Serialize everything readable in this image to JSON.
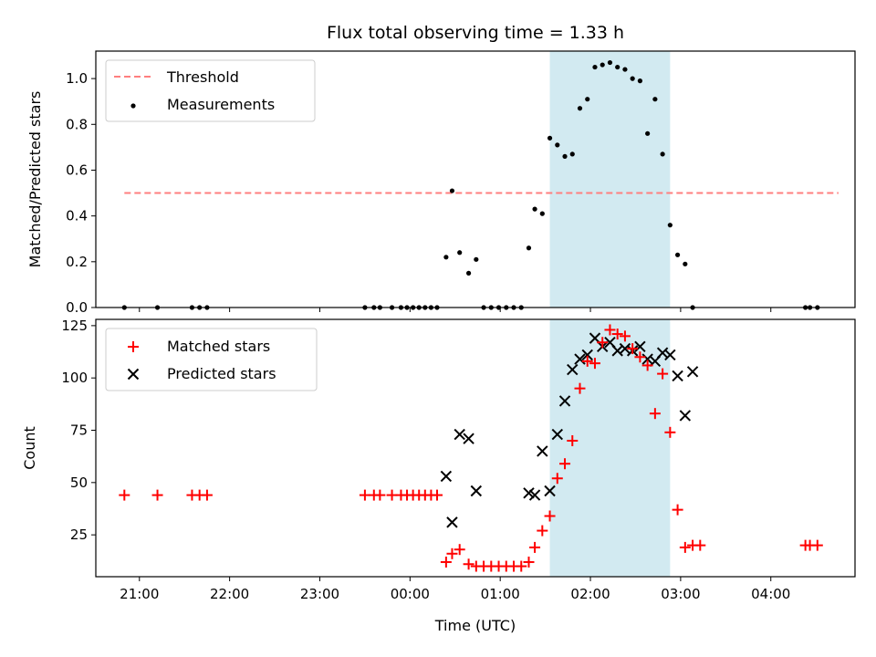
{
  "title": "Flux total observing time = 1.33 h",
  "xlabel": "Time (UTC)",
  "colors": {
    "threshold": "#ff7f7f",
    "measurement": "#000000",
    "matched": "#ff0000",
    "predicted": "#000000",
    "span": "#add8e6"
  },
  "chart_data": [
    {
      "type": "scatter",
      "ylabel": "Matched/Predicted stars",
      "xlim": [
        "20:31",
        "04:56"
      ],
      "ylim": [
        0,
        1.12
      ],
      "yticks": [
        0.0,
        0.2,
        0.4,
        0.6,
        0.8,
        1.0
      ],
      "ytick_labels": [
        "0.0",
        "0.2",
        "0.4",
        "0.6",
        "0.8",
        "1.0"
      ],
      "xtick_labels": [],
      "highlight_span": [
        "01:33",
        "02:53"
      ],
      "legend": {
        "location": "upper left",
        "entries": [
          "Threshold",
          "Measurements"
        ]
      },
      "threshold": {
        "name": "Threshold",
        "value": 0.5,
        "x_range": [
          "20:50",
          "04:45"
        ]
      },
      "series": [
        {
          "name": "Measurements",
          "marker": "dot",
          "points": [
            [
              "20:50",
              0.0
            ],
            [
              "21:12",
              0.0
            ],
            [
              "21:35",
              0.0
            ],
            [
              "21:40",
              0.0
            ],
            [
              "21:45",
              0.0
            ],
            [
              "23:30",
              0.0
            ],
            [
              "23:36",
              0.0
            ],
            [
              "23:40",
              0.0
            ],
            [
              "23:48",
              0.0
            ],
            [
              "23:54",
              0.0
            ],
            [
              "23:58",
              0.0
            ],
            [
              "00:02",
              0.0
            ],
            [
              "00:06",
              0.0
            ],
            [
              "00:10",
              0.0
            ],
            [
              "00:14",
              0.0
            ],
            [
              "00:18",
              0.0
            ],
            [
              "00:24",
              0.22
            ],
            [
              "00:28",
              0.51
            ],
            [
              "00:33",
              0.24
            ],
            [
              "00:39",
              0.15
            ],
            [
              "00:44",
              0.21
            ],
            [
              "00:49",
              0.0
            ],
            [
              "00:54",
              0.0
            ],
            [
              "00:59",
              0.0
            ],
            [
              "01:04",
              0.0
            ],
            [
              "01:09",
              0.0
            ],
            [
              "01:14",
              0.0
            ],
            [
              "01:19",
              0.26
            ],
            [
              "01:23",
              0.43
            ],
            [
              "01:28",
              0.41
            ],
            [
              "01:33",
              0.74
            ],
            [
              "01:38",
              0.71
            ],
            [
              "01:43",
              0.66
            ],
            [
              "01:48",
              0.67
            ],
            [
              "01:53",
              0.87
            ],
            [
              "01:58",
              0.91
            ],
            [
              "02:03",
              1.05
            ],
            [
              "02:08",
              1.06
            ],
            [
              "02:13",
              1.07
            ],
            [
              "02:18",
              1.05
            ],
            [
              "02:23",
              1.04
            ],
            [
              "02:28",
              1.0
            ],
            [
              "02:33",
              0.99
            ],
            [
              "02:38",
              0.76
            ],
            [
              "02:43",
              0.91
            ],
            [
              "02:48",
              0.67
            ],
            [
              "02:53",
              0.36
            ],
            [
              "02:58",
              0.23
            ],
            [
              "03:03",
              0.19
            ],
            [
              "03:08",
              0.0
            ],
            [
              "04:23",
              0.0
            ],
            [
              "04:26",
              0.0
            ],
            [
              "04:31",
              0.0
            ]
          ]
        }
      ]
    },
    {
      "type": "scatter",
      "ylabel": "Count",
      "xlim": [
        "20:31",
        "04:56"
      ],
      "ylim": [
        5,
        128
      ],
      "yticks": [
        25,
        50,
        75,
        100,
        125
      ],
      "ytick_labels": [
        "25",
        "50",
        "75",
        "100",
        "125"
      ],
      "xticks": [
        "21:00",
        "22:00",
        "23:00",
        "00:00",
        "01:00",
        "02:00",
        "03:00",
        "04:00"
      ],
      "xtick_labels": [
        "21:00",
        "22:00",
        "23:00",
        "00:00",
        "01:00",
        "02:00",
        "03:00",
        "04:00"
      ],
      "highlight_span": [
        "01:33",
        "02:53"
      ],
      "legend": {
        "location": "upper left",
        "entries": [
          "Matched stars",
          "Predicted stars"
        ]
      },
      "series": [
        {
          "name": "Matched stars",
          "marker": "plus",
          "points": [
            [
              "20:50",
              44
            ],
            [
              "21:12",
              44
            ],
            [
              "21:35",
              44
            ],
            [
              "21:40",
              44
            ],
            [
              "21:45",
              44
            ],
            [
              "23:30",
              44
            ],
            [
              "23:36",
              44
            ],
            [
              "23:40",
              44
            ],
            [
              "23:48",
              44
            ],
            [
              "23:54",
              44
            ],
            [
              "23:58",
              44
            ],
            [
              "00:02",
              44
            ],
            [
              "00:06",
              44
            ],
            [
              "00:10",
              44
            ],
            [
              "00:14",
              44
            ],
            [
              "00:18",
              44
            ],
            [
              "00:24",
              12
            ],
            [
              "00:28",
              16
            ],
            [
              "00:33",
              18
            ],
            [
              "00:39",
              11
            ],
            [
              "00:44",
              10
            ],
            [
              "00:49",
              10
            ],
            [
              "00:54",
              10
            ],
            [
              "00:59",
              10
            ],
            [
              "01:04",
              10
            ],
            [
              "01:09",
              10
            ],
            [
              "01:14",
              10
            ],
            [
              "01:19",
              12
            ],
            [
              "01:23",
              19
            ],
            [
              "01:28",
              27
            ],
            [
              "01:33",
              34
            ],
            [
              "01:38",
              52
            ],
            [
              "01:43",
              59
            ],
            [
              "01:48",
              70
            ],
            [
              "01:53",
              95
            ],
            [
              "01:58",
              108
            ],
            [
              "02:03",
              107
            ],
            [
              "02:08",
              117
            ],
            [
              "02:13",
              123
            ],
            [
              "02:18",
              121
            ],
            [
              "02:23",
              120
            ],
            [
              "02:28",
              114
            ],
            [
              "02:33",
              110
            ],
            [
              "02:38",
              106
            ],
            [
              "02:43",
              83
            ],
            [
              "02:48",
              102
            ],
            [
              "02:53",
              74
            ],
            [
              "02:58",
              37
            ],
            [
              "03:03",
              19
            ],
            [
              "03:08",
              20
            ],
            [
              "03:13",
              20
            ],
            [
              "04:23",
              20
            ],
            [
              "04:26",
              20
            ],
            [
              "04:31",
              20
            ]
          ]
        },
        {
          "name": "Predicted stars",
          "marker": "x",
          "points": [
            [
              "00:24",
              53
            ],
            [
              "00:28",
              31
            ],
            [
              "00:33",
              73
            ],
            [
              "00:39",
              71
            ],
            [
              "00:44",
              46
            ],
            [
              "01:19",
              45
            ],
            [
              "01:23",
              44
            ],
            [
              "01:28",
              65
            ],
            [
              "01:33",
              46
            ],
            [
              "01:38",
              73
            ],
            [
              "01:43",
              89
            ],
            [
              "01:48",
              104
            ],
            [
              "01:53",
              109
            ],
            [
              "01:58",
              111
            ],
            [
              "02:03",
              119
            ],
            [
              "02:08",
              115
            ],
            [
              "02:13",
              117
            ],
            [
              "02:18",
              113
            ],
            [
              "02:23",
              114
            ],
            [
              "02:28",
              113
            ],
            [
              "02:33",
              115
            ],
            [
              "02:38",
              109
            ],
            [
              "02:43",
              108
            ],
            [
              "02:48",
              112
            ],
            [
              "02:53",
              111
            ],
            [
              "02:58",
              101
            ],
            [
              "03:03",
              82
            ],
            [
              "03:08",
              103
            ]
          ]
        }
      ]
    }
  ]
}
